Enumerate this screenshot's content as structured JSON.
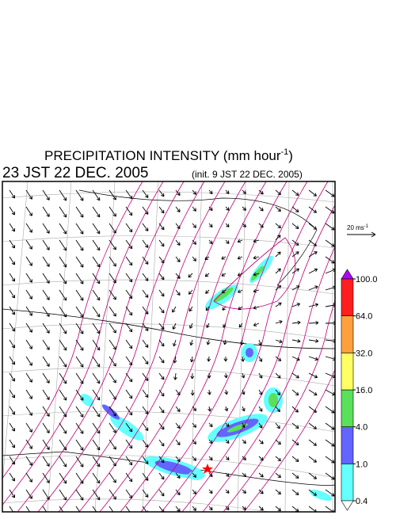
{
  "header": {
    "title": {
      "text": "PRECIPITATION INTENSITY (mm hour",
      "superscript": "-1",
      "suffix": ")"
    },
    "valid_time": "23 JST 22 DEC. 2005",
    "init_time": "(init. 9 JST 22 DEC. 2005)"
  },
  "wind_scale": {
    "text": "20 ms",
    "superscript": "-1"
  },
  "colorbar": {
    "over_color": "#b400ff",
    "colors": [
      "#64ffff",
      "#6464ff",
      "#5ae05a",
      "#ffff64",
      "#ffa03c",
      "#ff1e1e"
    ],
    "ticks": [
      {
        "value": 0.4,
        "label": "0.4"
      },
      {
        "value": 1,
        "label": "1.0"
      },
      {
        "value": 4,
        "label": "4.0"
      },
      {
        "value": 16,
        "label": "16.0"
      },
      {
        "value": 32,
        "label": "32.0"
      },
      {
        "value": 64,
        "label": "64.0"
      },
      {
        "value": 100,
        "label": "100.0"
      }
    ]
  }
}
